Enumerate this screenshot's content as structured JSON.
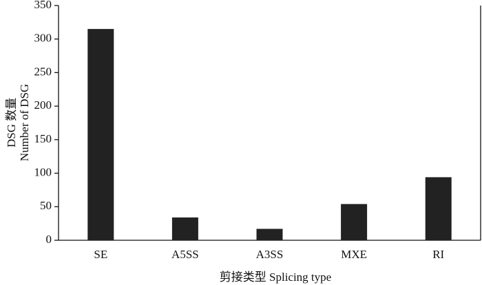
{
  "chart_data": {
    "type": "bar",
    "y_label": [
      "DSG 数量",
      "Number of DSG"
    ],
    "x_label": "剪接类型 Splicing type",
    "categories": [
      "SE",
      "A5SS",
      "A3SS",
      "MXE",
      "RI"
    ],
    "values": [
      315,
      34,
      17,
      54,
      94
    ],
    "color": "#222222",
    "ylim": [
      0,
      350
    ],
    "yticks": [
      0,
      50,
      100,
      150,
      200,
      250,
      300,
      350
    ],
    "grid": false
  }
}
